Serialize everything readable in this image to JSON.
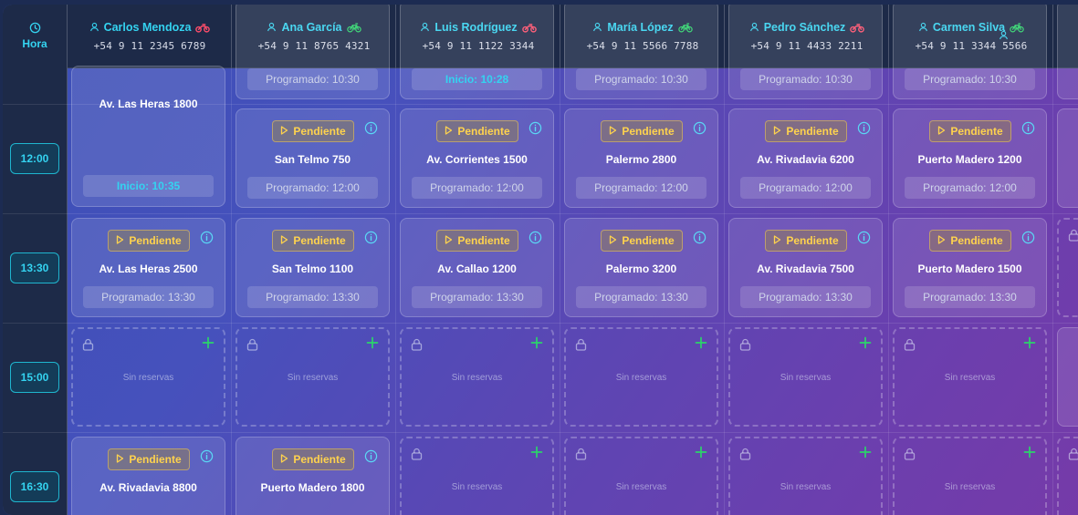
{
  "header": {
    "hour_label": "Hora"
  },
  "drivers": [
    {
      "name": "Carlos Mendoza",
      "phone": "+54 9 11 2345 6789",
      "vehicle": "motorcycle-icon"
    },
    {
      "name": "Ana García",
      "phone": "+54 9 11 8765 4321",
      "vehicle": "bicycle-icon"
    },
    {
      "name": "Luis Rodríguez",
      "phone": "+54 9 11 1122 3344",
      "vehicle": "motorcycle-icon"
    },
    {
      "name": "María López",
      "phone": "+54 9 11 5566 7788",
      "vehicle": "bicycle-icon"
    },
    {
      "name": "Pedro Sánchez",
      "phone": "+54 9 11 4433 2211",
      "vehicle": "motorcycle-icon"
    },
    {
      "name": "Carmen Silva",
      "phone": "+54 9 11 3344 5566",
      "vehicle": "bicycle-icon"
    }
  ],
  "times": [
    "12:00",
    "13:30",
    "15:00",
    "16:30"
  ],
  "top_row": [
    "Av. Las Heras 1800",
    "Programado: 10:30",
    "Inicio: 10:28",
    "Programado: 10:30",
    "Programado: 10:30",
    "Programado: 10:30"
  ],
  "tall_card": {
    "start": "Inicio: 10:35"
  },
  "status_label": "Pendiente",
  "empty_label": "Sin reservas",
  "row_1200": [
    null,
    {
      "address": "San Telmo 750",
      "sched": "Programado: 12:00"
    },
    {
      "address": "Av. Corrientes 1500",
      "sched": "Programado: 12:00"
    },
    {
      "address": "Palermo 2800",
      "sched": "Programado: 12:00"
    },
    {
      "address": "Av. Rivadavia 6200",
      "sched": "Programado: 12:00"
    },
    {
      "address": "Puerto Madero 1200",
      "sched": "Programado: 12:00"
    }
  ],
  "row_1330": [
    {
      "address": "Av. Las Heras 2500",
      "sched": "Programado: 13:30"
    },
    {
      "address": "San Telmo 1100",
      "sched": "Programado: 13:30"
    },
    {
      "address": "Av. Callao 1200",
      "sched": "Programado: 13:30"
    },
    {
      "address": "Palermo 3200",
      "sched": "Programado: 13:30"
    },
    {
      "address": "Av. Rivadavia 7500",
      "sched": "Programado: 13:30"
    },
    {
      "address": "Puerto Madero 1500",
      "sched": "Programado: 13:30"
    }
  ],
  "row_1630": [
    {
      "address": "Av. Rivadavia 8800"
    },
    {
      "address": "Puerto Madero 1800"
    }
  ],
  "colors": {
    "accent": "#34d3f0",
    "pending": "#ffd34d",
    "plus": "#2bd46a"
  }
}
